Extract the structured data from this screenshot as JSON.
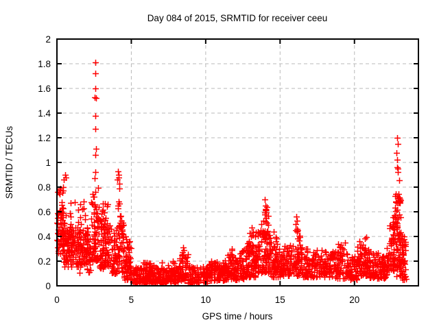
{
  "title": "Day 084 of 2015, SRMTID for receiver ceeu",
  "colors": {
    "background": "#ffffff",
    "frame": "#000000",
    "grid": "#b9b9b9",
    "marker": "#ff0000",
    "text": "#000000"
  },
  "chart_data": {
    "type": "scatter",
    "title": "Day 084 of 2015, SRMTID for receiver ceeu",
    "xlabel": "GPS time / hours",
    "ylabel": "SRMTID / TECUs",
    "xlim": [
      0,
      24.3
    ],
    "ylim": [
      0,
      2
    ],
    "xticks": [
      [
        0,
        "0"
      ],
      [
        5,
        "5"
      ],
      [
        10,
        "10"
      ],
      [
        15,
        "15"
      ],
      [
        20,
        "20"
      ]
    ],
    "yticks": [
      [
        0,
        "0"
      ],
      [
        0.2,
        "0.2"
      ],
      [
        0.4,
        "0.4"
      ],
      [
        0.6,
        "0.6"
      ],
      [
        0.8,
        "0.8"
      ],
      [
        1,
        "1"
      ],
      [
        1.2,
        "1.2"
      ],
      [
        1.4,
        "1.4"
      ],
      [
        1.6,
        "1.6"
      ],
      [
        1.8,
        "1.8"
      ],
      [
        2,
        "2"
      ]
    ],
    "grid": true,
    "legend": "none",
    "marker": "plus",
    "marker_color": "#ff0000",
    "seed": 84,
    "bands_format": [
      "t_start_hours",
      "t_end_hours",
      "n_points",
      "y_min_TECUs",
      "y_max_TECUs",
      "low_bias_exponent"
    ],
    "bands": [
      [
        0.0,
        0.45,
        60,
        0.26,
        0.62,
        1.2
      ],
      [
        0.0,
        0.45,
        16,
        0.55,
        0.8,
        1.0
      ],
      [
        0.45,
        1.2,
        95,
        0.15,
        0.5,
        1.1
      ],
      [
        0.45,
        1.2,
        8,
        0.48,
        0.68,
        1.0
      ],
      [
        1.2,
        2.3,
        120,
        0.17,
        0.48,
        1.2
      ],
      [
        1.4,
        1.95,
        10,
        0.48,
        0.71,
        1.0
      ],
      [
        1.2,
        2.3,
        10,
        0.1,
        0.17,
        1.0
      ],
      [
        2.3,
        2.85,
        70,
        0.2,
        0.8,
        1.6
      ],
      [
        2.85,
        3.6,
        85,
        0.14,
        0.55,
        1.3
      ],
      [
        3.0,
        3.45,
        8,
        0.55,
        0.67,
        1.0
      ],
      [
        3.6,
        4.5,
        85,
        0.1,
        0.48,
        1.3
      ],
      [
        3.95,
        4.3,
        12,
        0.48,
        0.8,
        1.0
      ],
      [
        4.25,
        4.5,
        8,
        0.45,
        0.58,
        1.0
      ],
      [
        4.5,
        5.0,
        55,
        0.05,
        0.32,
        1.5
      ],
      [
        4.6,
        4.9,
        5,
        0.32,
        0.44,
        1.0
      ],
      [
        5.0,
        6.0,
        85,
        0.02,
        0.15,
        1.3
      ],
      [
        5.8,
        6.3,
        10,
        0.13,
        0.22,
        1.0
      ],
      [
        6.0,
        8.2,
        190,
        0.02,
        0.15,
        1.3
      ],
      [
        6.4,
        8.0,
        10,
        0.14,
        0.2,
        1.0
      ],
      [
        8.2,
        8.8,
        55,
        0.04,
        0.26,
        1.2
      ],
      [
        8.8,
        10.2,
        95,
        0.02,
        0.16,
        1.2
      ],
      [
        10.2,
        11.3,
        95,
        0.04,
        0.2,
        1.2
      ],
      [
        11.3,
        12.7,
        115,
        0.05,
        0.24,
        1.2
      ],
      [
        11.45,
        11.8,
        6,
        0.24,
        0.3,
        1.0
      ],
      [
        12.2,
        12.6,
        6,
        0.24,
        0.3,
        1.0
      ],
      [
        12.7,
        13.5,
        85,
        0.07,
        0.35,
        1.3
      ],
      [
        12.9,
        13.4,
        8,
        0.33,
        0.44,
        1.0
      ],
      [
        13.5,
        14.4,
        100,
        0.1,
        0.45,
        1.3
      ],
      [
        13.85,
        14.2,
        14,
        0.4,
        0.65,
        1.0
      ],
      [
        14.4,
        15.2,
        75,
        0.07,
        0.32,
        1.3
      ],
      [
        14.55,
        14.85,
        6,
        0.32,
        0.45,
        1.0
      ],
      [
        15.2,
        16.5,
        115,
        0.08,
        0.33,
        1.3
      ],
      [
        15.95,
        16.35,
        10,
        0.33,
        0.52,
        1.0
      ],
      [
        16.5,
        18.0,
        115,
        0.07,
        0.3,
        1.3
      ],
      [
        18.0,
        19.5,
        115,
        0.06,
        0.28,
        1.3
      ],
      [
        18.9,
        19.45,
        6,
        0.28,
        0.36,
        1.0
      ],
      [
        19.5,
        20.2,
        60,
        0.05,
        0.25,
        1.3
      ],
      [
        20.2,
        21.0,
        75,
        0.08,
        0.32,
        1.2
      ],
      [
        20.3,
        20.8,
        6,
        0.3,
        0.4,
        1.0
      ],
      [
        21.0,
        22.2,
        105,
        0.06,
        0.28,
        1.3
      ],
      [
        22.2,
        22.7,
        60,
        0.12,
        0.5,
        1.3
      ],
      [
        22.55,
        22.75,
        6,
        0.45,
        0.57,
        1.0
      ],
      [
        22.7,
        23.1,
        65,
        0.15,
        0.75,
        1.4
      ],
      [
        22.75,
        23.1,
        10,
        0.06,
        0.18,
        1.0
      ],
      [
        23.1,
        23.45,
        45,
        0.05,
        0.42,
        1.4
      ]
    ],
    "notable_points": [
      [
        0.48,
        0.86
      ],
      [
        0.55,
        0.9
      ],
      [
        0.6,
        0.88
      ],
      [
        0.25,
        0.79
      ],
      [
        2.58,
        1.81
      ],
      [
        2.6,
        1.72
      ],
      [
        2.57,
        1.6
      ],
      [
        2.55,
        1.53
      ],
      [
        2.63,
        1.52
      ],
      [
        2.6,
        1.38
      ],
      [
        2.6,
        1.27
      ],
      [
        2.62,
        1.11
      ],
      [
        2.6,
        1.06
      ],
      [
        2.58,
        0.92
      ],
      [
        2.55,
        0.87
      ],
      [
        2.45,
        0.72
      ],
      [
        2.42,
        0.66
      ],
      [
        4.1,
        0.93
      ],
      [
        4.13,
        0.9
      ],
      [
        4.16,
        0.88
      ],
      [
        4.07,
        0.86
      ],
      [
        4.18,
        0.83
      ],
      [
        8.5,
        0.31
      ],
      [
        8.55,
        0.29
      ],
      [
        8.42,
        0.27
      ],
      [
        13.1,
        0.47
      ],
      [
        13.95,
        0.7
      ],
      [
        14.0,
        0.65
      ],
      [
        14.02,
        0.62
      ],
      [
        13.98,
        0.58
      ],
      [
        14.05,
        0.55
      ],
      [
        13.75,
        0.5
      ],
      [
        16.1,
        0.56
      ],
      [
        16.12,
        0.53
      ],
      [
        16.05,
        0.5
      ],
      [
        16.15,
        0.46
      ],
      [
        19.38,
        0.35
      ],
      [
        22.88,
        1.2
      ],
      [
        22.9,
        1.15
      ],
      [
        22.82,
        1.08
      ],
      [
        22.86,
        1.02
      ],
      [
        22.88,
        0.96
      ],
      [
        22.9,
        0.95
      ],
      [
        22.92,
        0.92
      ],
      [
        23.0,
        0.855
      ],
      [
        22.85,
        0.73
      ],
      [
        22.9,
        0.71
      ],
      [
        22.95,
        0.69
      ],
      [
        22.8,
        0.68
      ]
    ]
  }
}
